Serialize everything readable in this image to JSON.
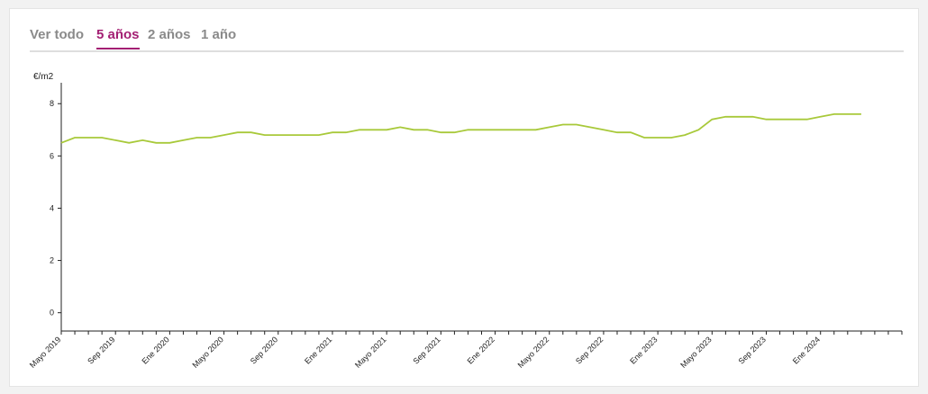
{
  "tabs": [
    {
      "label": "Ver todo",
      "active": false
    },
    {
      "label": "5 años",
      "active": true
    },
    {
      "label": "2 años",
      "active": false
    },
    {
      "label": "1 año",
      "active": false
    }
  ],
  "colors": {
    "accent": "#a31f73",
    "line": "#a8c93a",
    "tab_inactive": "#8a8a8a"
  },
  "chart_data": {
    "type": "line",
    "ylabel": "€/m2",
    "ylim": [
      -0.7,
      8.8
    ],
    "yticks": [
      0,
      2,
      4,
      6,
      8
    ],
    "grid": false,
    "xlim": [
      "2019-05",
      "2024-07"
    ],
    "xtick_labels": [
      "Mayo 2019",
      "Sep 2019",
      "Ene 2020",
      "Mayo 2020",
      "Sep 2020",
      "Ene 2021",
      "Mayo 2021",
      "Sep 2021",
      "Ene 2022",
      "Mayo 2022",
      "Sep 2022",
      "Ene 2023",
      "Mayo 2023",
      "Sep 2023",
      "Ene 2024"
    ],
    "series": [
      {
        "x": [
          "2019-05",
          "2019-06",
          "2019-07",
          "2019-08",
          "2019-09",
          "2019-10",
          "2019-11",
          "2019-12",
          "2020-01",
          "2020-02",
          "2020-03",
          "2020-04",
          "2020-05",
          "2020-06",
          "2020-07",
          "2020-08",
          "2020-09",
          "2020-10",
          "2020-11",
          "2020-12",
          "2021-01",
          "2021-02",
          "2021-03",
          "2021-04",
          "2021-05",
          "2021-06",
          "2021-07",
          "2021-08",
          "2021-09",
          "2021-10",
          "2021-11",
          "2021-12",
          "2022-01",
          "2022-02",
          "2022-03",
          "2022-04",
          "2022-05",
          "2022-06",
          "2022-07",
          "2022-08",
          "2022-09",
          "2022-10",
          "2022-11",
          "2022-12",
          "2023-01",
          "2023-02",
          "2023-03",
          "2023-04",
          "2023-05",
          "2023-06",
          "2023-07",
          "2023-08",
          "2023-09",
          "2023-10",
          "2023-11",
          "2023-12",
          "2024-01",
          "2024-02",
          "2024-03",
          "2024-04"
        ],
        "values": [
          6.5,
          6.7,
          6.7,
          6.7,
          6.6,
          6.5,
          6.6,
          6.5,
          6.5,
          6.6,
          6.7,
          6.7,
          6.8,
          6.9,
          6.9,
          6.8,
          6.8,
          6.8,
          6.8,
          6.8,
          6.9,
          6.9,
          7.0,
          7.0,
          7.0,
          7.1,
          7.0,
          7.0,
          6.9,
          6.9,
          7.0,
          7.0,
          7.0,
          7.0,
          7.0,
          7.0,
          7.1,
          7.2,
          7.2,
          7.1,
          7.0,
          6.9,
          6.9,
          6.7,
          6.7,
          6.7,
          6.8,
          7.0,
          7.4,
          7.5,
          7.5,
          7.5,
          7.4,
          7.4,
          7.4,
          7.4,
          7.5,
          7.6,
          7.6,
          7.6
        ]
      }
    ]
  }
}
